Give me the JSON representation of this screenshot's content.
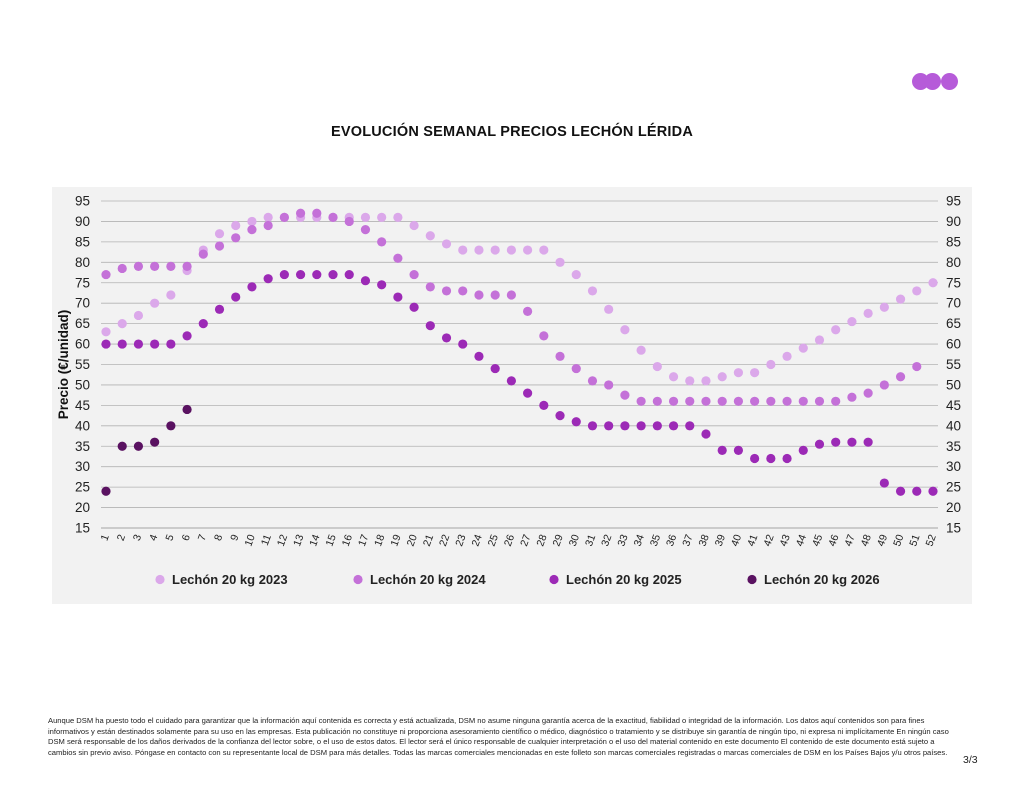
{
  "page": {
    "title": "EVOLUCIÓN SEMANAL PRECIOS LECHÓN LÉRIDA",
    "disclaimer": "Aunque DSM ha puesto todo el cuidado para garantizar que la información aquí contenida es correcta y está actualizada, DSM no asume ninguna garantía acerca de la exactitud, fiabilidad o integridad de la información. Los datos aquí contenidos son para fines informativos y están destinados solamente para su uso en las empresas. Esta publicación no constituye ni proporciona asesoramiento científico o médico, diagnóstico o tratamiento y se distribuye sin garantía de ningún tipo, ni expresa ni implícitamente En ningún caso DSM será responsable de los daños derivados de la confianza del lector sobre, o el uso de estos datos. El lector será el único responsable de cualquier interpretación o el uso del material contenido en este documento El contenido de este documento está sujeto a cambios sin previo aviso. Póngase en contacto con su representante local de DSM para más detalles. Todas las marcas comerciales mencionadas en este folleto son marcas comerciales registradas o marcas comerciales de DSM en los Países Bajos y/u otros países.",
    "page_number": "3/3",
    "logo_color": "#b65bd9"
  },
  "chart_data": {
    "type": "scatter",
    "title": "EVOLUCIÓN SEMANAL PRECIOS LECHÓN LÉRIDA",
    "xlabel": "",
    "ylabel": "Precio (€/unidad)",
    "x": [
      1,
      2,
      3,
      4,
      5,
      6,
      7,
      8,
      9,
      10,
      11,
      12,
      13,
      14,
      15,
      16,
      17,
      18,
      19,
      20,
      21,
      22,
      23,
      24,
      25,
      26,
      27,
      28,
      29,
      30,
      31,
      32,
      33,
      34,
      35,
      36,
      37,
      38,
      39,
      40,
      41,
      42,
      43,
      44,
      45,
      46,
      47,
      48,
      49,
      50,
      51,
      52
    ],
    "ylim": [
      15,
      95
    ],
    "yticks": [
      15,
      20,
      25,
      30,
      35,
      40,
      45,
      50,
      55,
      60,
      65,
      70,
      75,
      80,
      85,
      90,
      95
    ],
    "secondary_y_axis": true,
    "grid": "horizontal",
    "legend_position": "bottom",
    "series": [
      {
        "name": "Lechón 20 kg 2023",
        "color": "#dba8ea",
        "values": [
          63,
          65,
          67,
          70,
          72,
          78,
          83,
          87,
          89,
          90,
          91,
          91,
          91,
          91,
          91,
          91,
          91,
          91,
          91,
          89,
          86.5,
          84.5,
          83,
          83,
          83,
          83,
          83,
          83,
          80,
          77,
          73,
          68.5,
          63.5,
          58.5,
          54.5,
          52,
          51,
          51,
          52,
          53,
          53,
          55,
          57,
          59,
          61,
          63.5,
          65.5,
          67.5,
          69,
          71,
          73,
          75
        ]
      },
      {
        "name": "Lechón 20 kg 2024",
        "color": "#c471d8",
        "values": [
          77,
          78.5,
          79,
          79,
          79,
          79,
          82,
          84,
          86,
          88,
          89,
          91,
          92,
          92,
          91,
          90,
          88,
          85,
          81,
          77,
          74,
          73,
          73,
          72,
          72,
          72,
          68,
          62,
          57,
          54,
          51,
          50,
          47.5,
          46,
          46,
          46,
          46,
          46,
          46,
          46,
          46,
          46,
          46,
          46,
          46,
          46,
          47,
          48,
          50,
          52,
          54.5,
          null
        ]
      },
      {
        "name": "Lechón 20 kg 2025",
        "color": "#9c2ab6",
        "values": [
          60,
          60,
          60,
          60,
          60,
          62,
          65,
          68.5,
          71.5,
          74,
          76,
          77,
          77,
          77,
          77,
          77,
          75.5,
          74.5,
          71.5,
          69,
          64.5,
          61.5,
          60,
          57,
          54,
          51,
          48,
          45,
          42.5,
          41,
          40,
          40,
          40,
          40,
          40,
          40,
          40,
          38,
          34,
          34,
          32,
          32,
          32,
          34,
          35.5,
          36,
          36,
          36,
          26,
          24,
          24,
          24
        ]
      },
      {
        "name": "Lechón 20 kg 2026",
        "color": "#5a1261",
        "values": [
          24,
          35,
          35,
          36,
          40,
          44,
          null,
          null,
          null,
          null,
          null,
          null,
          null,
          null,
          null,
          null,
          null,
          null,
          null,
          null,
          null,
          null,
          null,
          null,
          null,
          null,
          null,
          null,
          null,
          null,
          null,
          null,
          null,
          null,
          null,
          null,
          null,
          null,
          null,
          null,
          null,
          null,
          null,
          null,
          null,
          null,
          null,
          null,
          null,
          null,
          null,
          null
        ]
      }
    ]
  }
}
